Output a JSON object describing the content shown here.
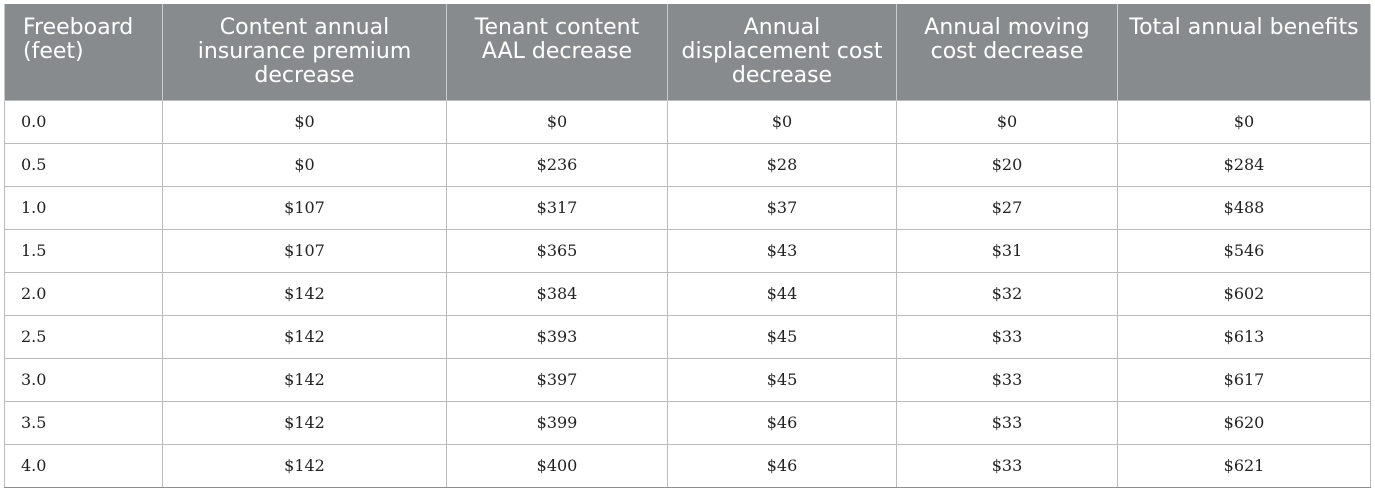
{
  "table": {
    "headers": [
      "Freeboard (feet)",
      "Content annual insurance premium decrease",
      "Tenant content AAL decrease",
      "Annual displacement cost decrease",
      "Annual moving cost decrease",
      "Total annual benefits"
    ],
    "rows": [
      [
        "0.0",
        "$0",
        "$0",
        "$0",
        "$0",
        "$0"
      ],
      [
        "0.5",
        "$0",
        "$236",
        "$28",
        "$20",
        "$284"
      ],
      [
        "1.0",
        "$107",
        "$317",
        "$37",
        "$27",
        "$488"
      ],
      [
        "1.5",
        "$107",
        "$365",
        "$43",
        "$31",
        "$546"
      ],
      [
        "2.0",
        "$142",
        "$384",
        "$44",
        "$32",
        "$602"
      ],
      [
        "2.5",
        "$142",
        "$393",
        "$45",
        "$33",
        "$613"
      ],
      [
        "3.0",
        "$142",
        "$397",
        "$45",
        "$33",
        "$617"
      ],
      [
        "3.5",
        "$142",
        "$399",
        "$46",
        "$33",
        "$620"
      ],
      [
        "4.0",
        "$142",
        "$400",
        "$46",
        "$33",
        "$621"
      ]
    ]
  },
  "colors": {
    "header_bg": "#888b8d",
    "header_text": "#ffffff",
    "grid": "#b9bbbc"
  }
}
